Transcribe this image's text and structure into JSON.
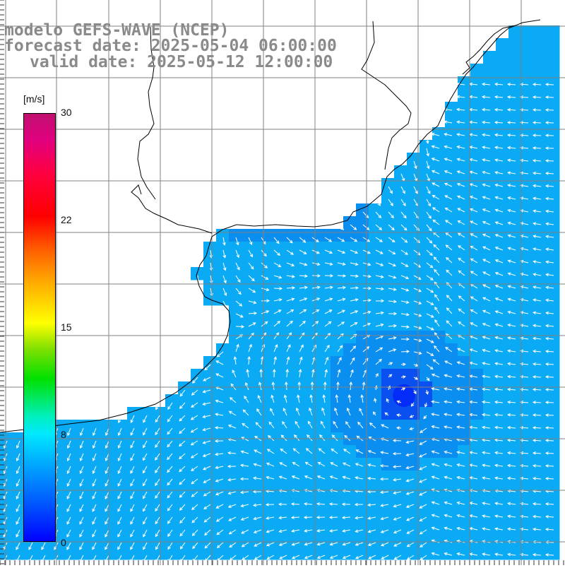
{
  "title": {
    "model": "modelo GEFS-WAVE (NCEP)",
    "forecast": "forecast date: 2025-05-04 06:00:00",
    "valid": "valid date: 2025-05-12 12:00:00"
  },
  "colorbar": {
    "unit": "[m/s]",
    "min": 0,
    "max": 30,
    "tick_labels": [
      "30",
      "22",
      "15",
      "8",
      "0"
    ],
    "tick_values": [
      30,
      22,
      15,
      8,
      0
    ]
  },
  "map": {
    "variable": "wind vectors over wind speed",
    "land_color": "#ffffff",
    "grid_color": "#808080",
    "low_speed_center": {
      "description": "cyclonic circulation minimum, dark blue"
    },
    "colors": {
      "light": "#0aaaf5",
      "mid": "#0a8ef0",
      "dark": "#0a4ff0",
      "darkest": "#0010ff"
    }
  }
}
